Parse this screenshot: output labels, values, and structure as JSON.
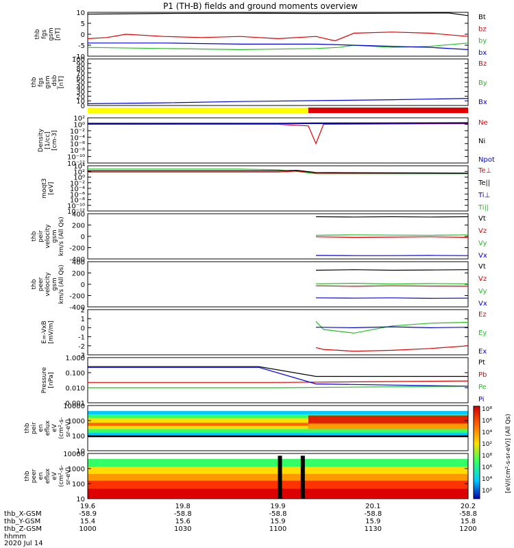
{
  "title": "P1 (TH-B) fields and ground moments overview",
  "date_label": "2020 Jul 14",
  "colors": {
    "black": "#000000",
    "red": "#e00000",
    "green": "#20c020",
    "blue": "#0000e0",
    "yellow": "#ffff00",
    "orange": "#ff9900"
  },
  "chart_data": {
    "type": "line",
    "x_time_range": [
      "10:00",
      "12:00"
    ],
    "panels": [
      {
        "ylabel": [
          "thb",
          "fgs",
          "gsm",
          "[nT]"
        ],
        "yticks": [
          "10",
          "5",
          "0",
          "-5",
          "-10"
        ],
        "ylim": [
          -10,
          10
        ],
        "scale": "linear",
        "legend": [
          {
            "text": "Bt",
            "color": "black"
          },
          {
            "text": "bz",
            "color": "red"
          },
          {
            "text": "by",
            "color": "green"
          },
          {
            "text": "bx",
            "color": "blue"
          }
        ],
        "series": [
          {
            "name": "Bt",
            "color": "black",
            "t": [
              0,
              0.2,
              0.4,
              0.6,
              0.8,
              0.95,
              1
            ],
            "v": [
              9.2,
              9.5,
              9.6,
              9.5,
              9.6,
              9.7,
              8.5
            ]
          },
          {
            "name": "bz",
            "color": "red",
            "t": [
              0,
              0.05,
              0.1,
              0.2,
              0.3,
              0.4,
              0.5,
              0.6,
              0.65,
              0.7,
              0.8,
              0.9,
              1
            ],
            "v": [
              -2,
              -1.5,
              0,
              -1,
              -1.5,
              -1,
              -2,
              -1,
              -3,
              0.5,
              1,
              0.5,
              -1
            ]
          },
          {
            "name": "by",
            "color": "green",
            "t": [
              0,
              0.2,
              0.4,
              0.6,
              0.66,
              0.7,
              0.8,
              0.9,
              1
            ],
            "v": [
              -6,
              -6.5,
              -7,
              -6.5,
              -6,
              -5,
              -6,
              -5.5,
              -4
            ]
          },
          {
            "name": "bx",
            "color": "blue",
            "t": [
              0,
              0.2,
              0.4,
              0.6,
              0.7,
              0.8,
              0.9,
              1
            ],
            "v": [
              -4,
              -4,
              -4.5,
              -4.5,
              -5,
              -5.5,
              -6,
              -7
            ]
          }
        ]
      },
      {
        "ylabel": [
          "thb",
          "fgs",
          "gsm",
          "_dsb",
          "[nT]"
        ],
        "yticks": [
          "100",
          "90",
          "80",
          "70",
          "60",
          "50",
          "40",
          "30",
          "20",
          "10",
          "0"
        ],
        "ylim": [
          -5,
          100
        ],
        "scale": "linear",
        "legend": [
          {
            "text": "Bz",
            "color": "red"
          },
          {
            "text": "By",
            "color": "green"
          },
          {
            "text": "Bx",
            "color": "blue"
          }
        ],
        "series": [
          {
            "name": "Bx",
            "color": "blue",
            "t": [
              0,
              0.2,
              0.4,
              0.6,
              0.8,
              1
            ],
            "v": [
              -1,
              1,
              4,
              6,
              8,
              11
            ]
          }
        ]
      },
      {
        "ylabel": [
          "Density",
          "[1/cc]",
          "[cm-3]"
        ],
        "yticks": [
          "10²",
          "10⁰",
          "10⁻²",
          "10⁻⁴",
          "10⁻⁶",
          "10⁻⁸",
          "10⁻¹⁰",
          "10⁻¹²"
        ],
        "ylim": [
          -12,
          2
        ],
        "scale": "log",
        "legend": [
          {
            "text": "Ne",
            "color": "red"
          },
          {
            "text": "Ni",
            "color": "black"
          },
          {
            "text": "Npot",
            "color": "blue"
          }
        ],
        "series": [
          {
            "name": "Ni",
            "color": "black",
            "t": [
              0,
              0.5,
              0.6,
              1
            ],
            "v": [
              0.3,
              0.3,
              0.4,
              0.5
            ]
          },
          {
            "name": "Ne",
            "color": "red",
            "t": [
              0,
              0.5,
              0.58,
              0.6,
              0.62,
              1
            ],
            "v": [
              0,
              0,
              -0.5,
              -6,
              0,
              0.2
            ]
          },
          {
            "name": "Npot",
            "color": "blue",
            "t": [
              0,
              0.5,
              1
            ],
            "v": [
              0.1,
              0.2,
              0.3
            ]
          }
        ]
      },
      {
        "ylabel": [
          "moqt3",
          "[eV]"
        ],
        "yticks": [
          "10⁴",
          "10²",
          "10⁰",
          "10⁻²",
          "10⁻⁴",
          "10⁻⁶",
          "10⁻⁸",
          "10⁻¹⁰",
          "10⁻¹²"
        ],
        "ylim": [
          -12,
          4
        ],
        "scale": "log",
        "legend": [
          {
            "text": "Te⊥",
            "color": "red"
          },
          {
            "text": "Te||",
            "color": "black"
          },
          {
            "text": "Ti⊥",
            "color": "blue"
          },
          {
            "text": "Ti||",
            "color": "green"
          }
        ],
        "series": [
          {
            "name": "Ti||",
            "color": "green",
            "t": [
              0,
              0.4,
              0.5,
              0.55,
              0.6,
              1
            ],
            "v": [
              2.8,
              2.8,
              2.6,
              2,
              1.2,
              1.2
            ]
          },
          {
            "name": "Te⊥",
            "color": "red",
            "t": [
              0,
              0.5,
              0.55,
              0.6,
              1
            ],
            "v": [
              1.8,
              1.8,
              2.1,
              1.5,
              1.3
            ]
          },
          {
            "name": "Te||",
            "color": "black",
            "t": [
              0,
              0.5,
              0.55,
              0.6,
              1
            ],
            "v": [
              2.2,
              2.2,
              2.4,
              1.6,
              1.4
            ]
          }
        ]
      },
      {
        "ylabel": [
          "thb",
          "peir",
          "velocity",
          "gsm",
          "km/s (All Qs)"
        ],
        "yticks": [
          "400",
          "200",
          "0",
          "-200",
          "-400"
        ],
        "ylim": [
          -450,
          450
        ],
        "scale": "linear",
        "legend": [
          {
            "text": "Vt",
            "color": "black"
          },
          {
            "text": "Vz",
            "color": "red"
          },
          {
            "text": "Vy",
            "color": "green"
          },
          {
            "text": "Vx",
            "color": "blue"
          }
        ],
        "series": [
          {
            "name": "Vt",
            "color": "black",
            "t": [
              0.6,
              0.7,
              0.8,
              0.9,
              1
            ],
            "v": [
              390,
              385,
              390,
              385,
              390
            ]
          },
          {
            "name": "Vz",
            "color": "red",
            "t": [
              0.6,
              0.7,
              0.8,
              0.9,
              1
            ],
            "v": [
              -10,
              -20,
              -15,
              -10,
              -20
            ]
          },
          {
            "name": "Vy",
            "color": "green",
            "t": [
              0.6,
              0.7,
              0.8,
              0.9,
              1
            ],
            "v": [
              20,
              30,
              25,
              20,
              30
            ]
          },
          {
            "name": "Vx",
            "color": "blue",
            "t": [
              0.6,
              0.7,
              0.8,
              0.9,
              1
            ],
            "v": [
              -380,
              -385,
              -385,
              -380,
              -385
            ]
          }
        ]
      },
      {
        "ylabel": [
          "thb",
          "peer",
          "velocity",
          "gsm",
          "km/s (All Qs)"
        ],
        "yticks": [
          "400",
          "200",
          "0",
          "-200",
          "-400"
        ],
        "ylim": [
          -450,
          450
        ],
        "scale": "linear",
        "legend": [
          {
            "text": "Vt",
            "color": "black"
          },
          {
            "text": "Vz",
            "color": "red"
          },
          {
            "text": "Vy",
            "color": "green"
          },
          {
            "text": "Vx",
            "color": "blue"
          }
        ],
        "series": [
          {
            "name": "Vt",
            "color": "black",
            "t": [
              0.6,
              0.7,
              0.8,
              0.9,
              1
            ],
            "v": [
              280,
              290,
              280,
              285,
              290
            ]
          },
          {
            "name": "Vz",
            "color": "red",
            "t": [
              0.6,
              0.7,
              0.8,
              0.9,
              1
            ],
            "v": [
              -30,
              -40,
              -30,
              -35,
              -40
            ]
          },
          {
            "name": "Vy",
            "color": "green",
            "t": [
              0.6,
              0.7,
              0.8,
              0.9,
              1
            ],
            "v": [
              10,
              20,
              5,
              15,
              10
            ]
          },
          {
            "name": "Vx",
            "color": "blue",
            "t": [
              0.6,
              0.7,
              0.8,
              0.9,
              1
            ],
            "v": [
              -270,
              -275,
              -270,
              -280,
              -275
            ]
          }
        ]
      },
      {
        "ylabel": [
          "E=-VxB",
          "[mV/m]"
        ],
        "yticks": [
          "2",
          "1",
          "0",
          "-1",
          "-2",
          "-3"
        ],
        "ylim": [
          -3,
          2
        ],
        "scale": "linear",
        "legend": [
          {
            "text": "Ez",
            "color": "red"
          },
          {
            "text": "Ey",
            "color": "green"
          },
          {
            "text": "Ex",
            "color": "blue"
          }
        ],
        "series": [
          {
            "name": "Ez",
            "color": "red",
            "t": [
              0.6,
              0.62,
              0.7,
              0.8,
              0.9,
              1
            ],
            "v": [
              -2.2,
              -2.4,
              -2.6,
              -2.5,
              -2.3,
              -2.0
            ]
          },
          {
            "name": "Ey",
            "color": "green",
            "t": [
              0.6,
              0.62,
              0.7,
              0.8,
              0.9,
              1
            ],
            "v": [
              0.7,
              -0.2,
              -0.6,
              0.2,
              0.5,
              0.6
            ]
          },
          {
            "name": "Ex",
            "color": "blue",
            "t": [
              0.6,
              0.7,
              0.8,
              0.9,
              1
            ],
            "v": [
              0.05,
              0.0,
              0.1,
              0.0,
              0.05
            ]
          }
        ]
      },
      {
        "ylabel": [
          "Pressure",
          "[nPa]"
        ],
        "yticks": [
          "1.000",
          "0.100",
          "0.010",
          "0.001"
        ],
        "ylim": [
          -3,
          0
        ],
        "scale": "log",
        "legend": [
          {
            "text": "Pt",
            "color": "black"
          },
          {
            "text": "Pb",
            "color": "red"
          },
          {
            "text": "Pe",
            "color": "green"
          },
          {
            "text": "Pi",
            "color": "blue"
          }
        ],
        "series": [
          {
            "name": "Pt",
            "color": "black",
            "t": [
              0,
              0.45,
              0.6,
              1
            ],
            "v": [
              -0.6,
              -0.6,
              -1.25,
              -1.25
            ]
          },
          {
            "name": "Pb",
            "color": "red",
            "t": [
              0,
              0.5,
              1
            ],
            "v": [
              -1.65,
              -1.65,
              -1.55
            ]
          },
          {
            "name": "Pe",
            "color": "green",
            "t": [
              0,
              0.5,
              1
            ],
            "v": [
              -2.0,
              -2.0,
              -1.9
            ]
          },
          {
            "name": "Pi",
            "color": "blue",
            "t": [
              0,
              0.45,
              0.6,
              1
            ],
            "v": [
              -0.65,
              -0.65,
              -1.75,
              -1.9
            ]
          }
        ]
      },
      {
        "ylabel": [
          "thb",
          "peir",
          "en",
          "eflux",
          "eV",
          "(cm²-s-",
          "sr-eV)"
        ],
        "yticks": [
          "10000",
          "1000",
          "100",
          "10"
        ],
        "scale": "log",
        "type": "heatmap"
      },
      {
        "ylabel": [
          "thb",
          "peer",
          "en",
          "eflux",
          "eV",
          "(cm²-s-",
          "sr-eV)"
        ],
        "yticks": [
          "10000",
          "1000",
          "100",
          "10"
        ],
        "scale": "log",
        "type": "heatmap"
      }
    ],
    "colorbar": {
      "ticks": [
        "10⁸",
        "10⁶",
        "10⁴",
        "10²",
        "10⁸",
        "10⁶",
        "10⁴",
        "10²"
      ],
      "label": "[eV/(cm²-s-sr-eV)] (All Qs)"
    },
    "x_axis": {
      "ticks": [
        "19.6",
        "19.8",
        "19.9",
        "20.1",
        "20.2"
      ],
      "rows": [
        {
          "label": "thb_X-GSM",
          "values": [
            "-58.9",
            "-58.8",
            "-58.8",
            "-58.8",
            "-58.8"
          ]
        },
        {
          "label": "thb_Y-GSM",
          "values": [
            "15.4",
            "15.6",
            "15.9",
            "15.9",
            "15.8"
          ]
        },
        {
          "label": "thb_Z-GSM",
          "values": [
            "1000",
            "1030",
            "1100",
            "1130",
            "1200"
          ]
        },
        {
          "label": "hhmm",
          "values": [
            "",
            "",
            "",
            "",
            ""
          ]
        }
      ]
    }
  }
}
